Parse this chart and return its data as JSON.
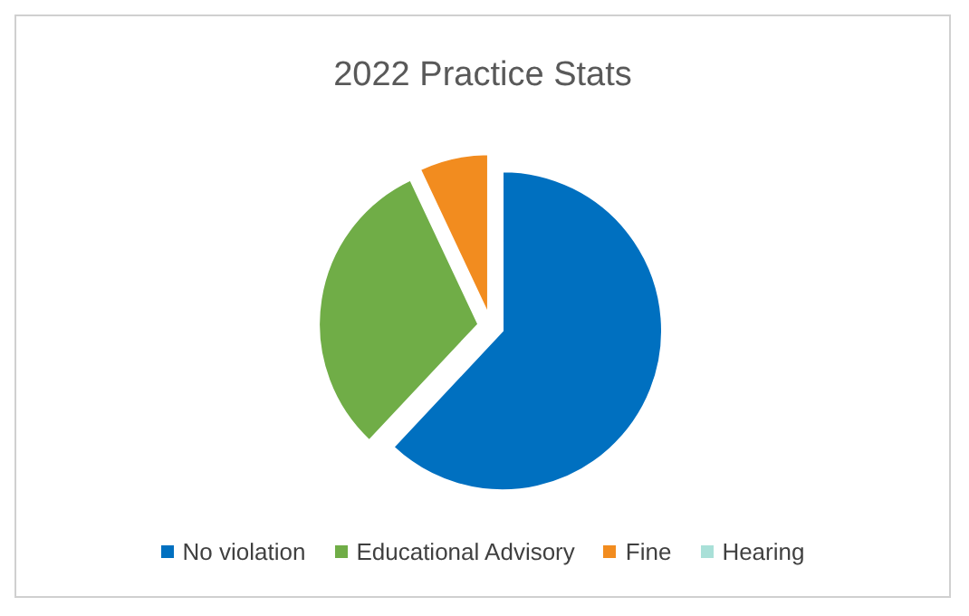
{
  "chart_data": {
    "type": "pie",
    "title": "2022  Practice Stats",
    "categories": [
      "No violation",
      "Educational Advisory",
      "Fine",
      "Hearing"
    ],
    "values": [
      62,
      31,
      7,
      0
    ],
    "colors": [
      "#0070c0",
      "#70ad47",
      "#f28c1f",
      "#a9e0d8"
    ],
    "legend": "bottom"
  }
}
